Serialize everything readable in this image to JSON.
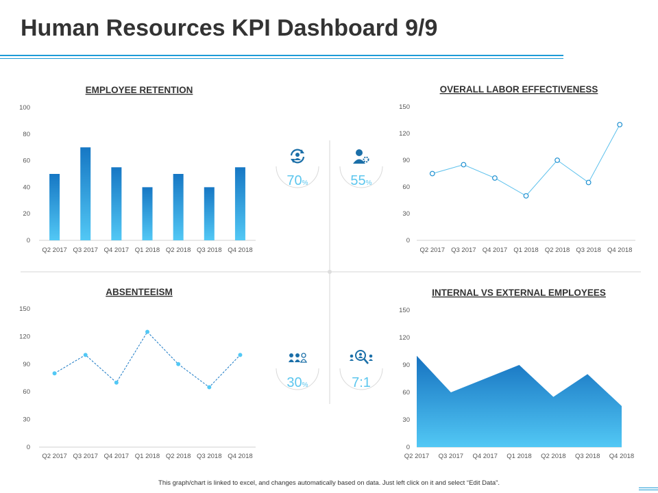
{
  "title": "Human Resources KPI Dashboard 9/9",
  "footer": "This graph/chart is linked to excel, and changes automatically based on data. Just left click on it and select “Edit Data”.",
  "colors": {
    "accent": "#1d9bd6",
    "bar_top": "#1677c4",
    "bar_bottom": "#52c8f5",
    "line": "#5bc0ec",
    "kpi_text": "#5cc6ee",
    "icon": "#1b6fa8"
  },
  "kpis": [
    {
      "icon": "refresh-user-icon",
      "value": "70",
      "unit": "%"
    },
    {
      "icon": "user-gear-icon",
      "value": "55",
      "unit": "%"
    },
    {
      "icon": "group-icon",
      "value": "30",
      "unit": "%"
    },
    {
      "icon": "search-people-icon",
      "value": "7:1",
      "unit": ""
    }
  ],
  "chart_data": [
    {
      "type": "bar",
      "title": "EMPLOYEE RETENTION",
      "categories": [
        "Q2 2017",
        "Q3 2017",
        "Q4 2017",
        "Q1 2018",
        "Q2 2018",
        "Q3 2018",
        "Q4 2018"
      ],
      "values": [
        50,
        70,
        55,
        40,
        50,
        40,
        55
      ],
      "ylim": [
        0,
        100
      ],
      "yticks": [
        "0",
        "20",
        "40",
        "60",
        "80",
        "100"
      ]
    },
    {
      "type": "line",
      "title": "OVERALL LABOR EFFECTIVENESS",
      "categories": [
        "Q2 2017",
        "Q3 2017",
        "Q4 2017",
        "Q1 2018",
        "Q2 2018",
        "Q3 2018",
        "Q4 2018"
      ],
      "values": [
        75,
        85,
        70,
        50,
        90,
        65,
        130
      ],
      "ylim": [
        0,
        150
      ],
      "yticks": [
        "0",
        "30",
        "60",
        "90",
        "120",
        "150"
      ]
    },
    {
      "type": "line",
      "title": "ABSENTEEISM",
      "categories": [
        "Q2 2017",
        "Q3 2017",
        "Q4 2017",
        "Q1 2018",
        "Q2 2018",
        "Q3 2018",
        "Q4 2018"
      ],
      "values": [
        80,
        100,
        70,
        125,
        90,
        65,
        100
      ],
      "ylim": [
        0,
        150
      ],
      "yticks": [
        "0",
        "30",
        "60",
        "90",
        "120",
        "150"
      ]
    },
    {
      "type": "area",
      "title": "INTERNAL VS EXTERNAL EMPLOYEES",
      "categories": [
        "Q2 2017",
        "Q3 2017",
        "Q4 2017",
        "Q1 2018",
        "Q2 2018",
        "Q3 2018",
        "Q4 2018"
      ],
      "values": [
        100,
        60,
        75,
        90,
        55,
        80,
        45
      ],
      "ylim": [
        0,
        150
      ],
      "yticks": [
        "0",
        "30",
        "60",
        "90",
        "120",
        "150"
      ]
    }
  ]
}
